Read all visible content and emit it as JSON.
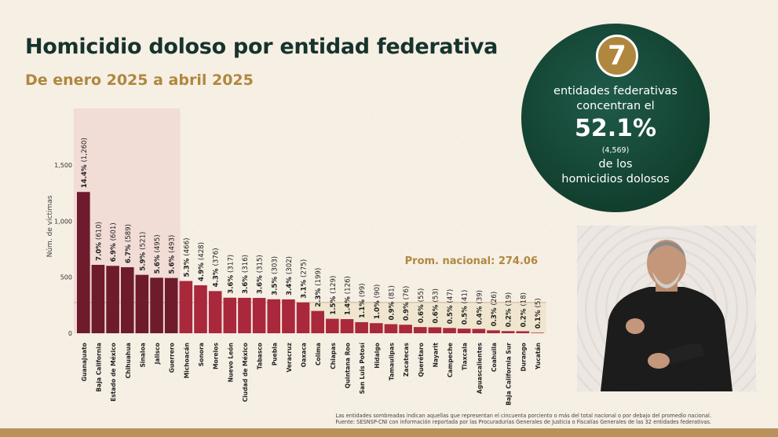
{
  "header": {
    "title": "Homicidio doloso por entidad federativa",
    "subtitle": "De enero 2025 a abril 2025"
  },
  "summary": {
    "badge_number": "7",
    "line1": "entidades federativas",
    "line2": "concentran el",
    "percent": "52.1%",
    "count": "(4,569)",
    "line3": "de los",
    "line4": "homicidios dolosos"
  },
  "footnotes": {
    "line1": "Las entidades sombreadas indican aquellas que representan el cincuenta porciento o más del total nacional o por debajo del promedio nacional.",
    "line2": "Fuente: SESNSP-CNI con información reportada por las Procuradurías Generales de Justicia o Fiscalías Generales de las 32 entidades federativas."
  },
  "colors": {
    "dark_bar": "#6e1b2d",
    "light_bar": "#a9283c",
    "highlight": "#f1dcd6",
    "avg_band": "#efe4cb",
    "title": "#16332c",
    "gold": "#b0873f"
  },
  "chart_data": {
    "type": "bar",
    "ylabel": "Núm. de víctimas",
    "ylim": [
      0,
      1500
    ],
    "yticks": [
      0,
      500,
      1000,
      1500
    ],
    "ytick_labels": [
      "0",
      "500",
      "1,000",
      "1,500"
    ],
    "average": 274.06,
    "average_label": "Prom. nacional: 274.06",
    "highlighted_top_count": 7,
    "categories": [
      "Guanajuato",
      "Baja California",
      "Estado de México",
      "Chihuahua",
      "Sinaloa",
      "Jalisco",
      "Guerrero",
      "Michoacán",
      "Sonora",
      "Morelos",
      "Nuevo León",
      "Ciudad de México",
      "Tabasco",
      "Puebla",
      "Veracruz",
      "Oaxaca",
      "Colima",
      "Chiapas",
      "Quintana Roo",
      "San Luis Potosí",
      "Hidalgo",
      "Tamaulipas",
      "Zacatecas",
      "Querétaro",
      "Nayarit",
      "Campeche",
      "Tlaxcala",
      "Aguascalientes",
      "Coahuila",
      "Baja California Sur",
      "Durango",
      "Yucatán"
    ],
    "values": [
      1260,
      610,
      601,
      589,
      521,
      495,
      493,
      466,
      428,
      376,
      317,
      316,
      315,
      303,
      302,
      275,
      199,
      129,
      126,
      99,
      90,
      81,
      76,
      55,
      53,
      47,
      41,
      39,
      26,
      19,
      18,
      5
    ],
    "percents": [
      "14.4%",
      "7.0%",
      "6.9%",
      "6.7%",
      "5.9%",
      "5.6%",
      "5.6%",
      "5.3%",
      "4.9%",
      "4.3%",
      "3.6%",
      "3.6%",
      "3.6%",
      "3.5%",
      "3.4%",
      "3.1%",
      "2.3%",
      "1.5%",
      "1.4%",
      "1.1%",
      "1.0%",
      "0.9%",
      "0.9%",
      "0.6%",
      "0.6%",
      "0.5%",
      "0.5%",
      "0.4%",
      "0.3%",
      "0.2%",
      "0.2%",
      "0.1%"
    ],
    "counts": [
      "(1,260)",
      "(610)",
      "(601)",
      "(589)",
      "(521)",
      "(495)",
      "(493)",
      "(466)",
      "(428)",
      "(376)",
      "(317)",
      "(316)",
      "(315)",
      "(303)",
      "(302)",
      "(275)",
      "(199)",
      "(129)",
      "(126)",
      "(99)",
      "(90)",
      "(81)",
      "(76)",
      "(55)",
      "(53)",
      "(47)",
      "(41)",
      "(39)",
      "(26)",
      "(19)",
      "(18)",
      "(5)"
    ]
  }
}
